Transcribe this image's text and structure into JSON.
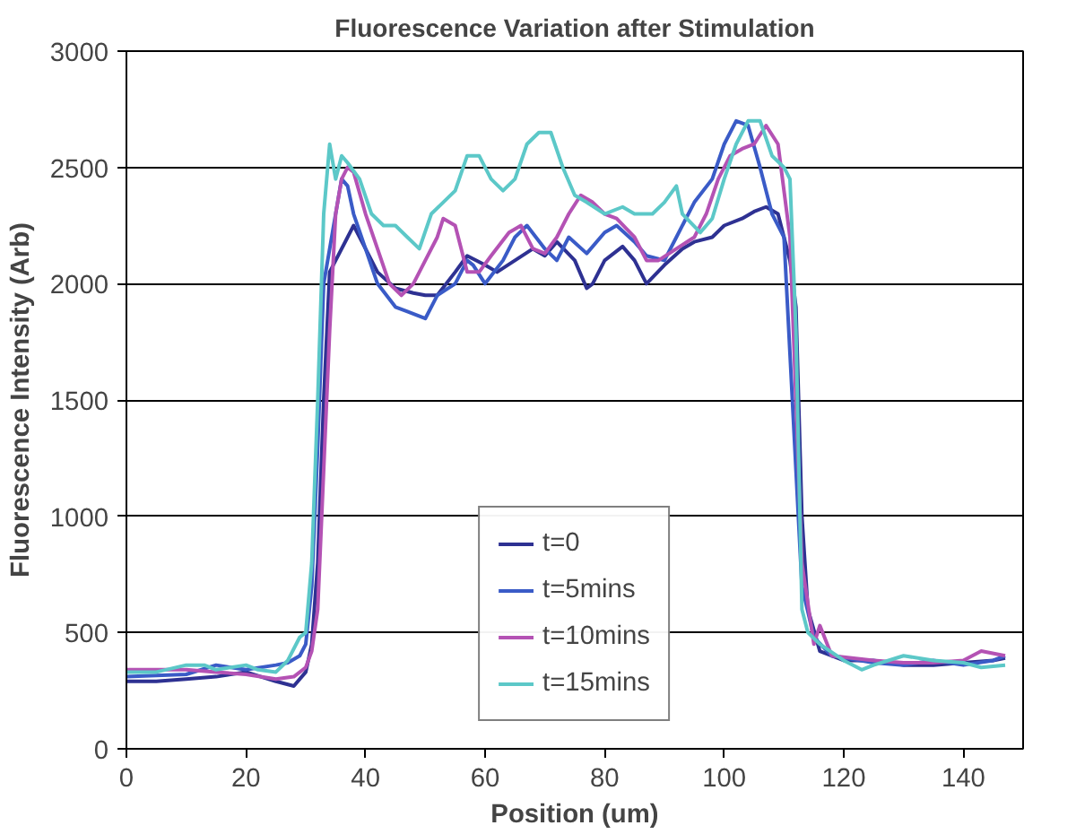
{
  "chart_data": {
    "type": "line",
    "title": "Fluorescence Variation after Stimulation",
    "xlabel": "Position (um)",
    "ylabel": "Fluorescence Intensity (Arb)",
    "xlim": [
      0,
      150
    ],
    "xticks": [
      0,
      20,
      40,
      60,
      80,
      100,
      120,
      140
    ],
    "ylim": [
      0,
      3000
    ],
    "yticks": [
      0,
      500,
      1000,
      1500,
      2000,
      2500,
      3000
    ],
    "grid": "y",
    "legend": "bottom",
    "marker": "none",
    "line_style": "solid",
    "series": [
      {
        "name": "t=0",
        "color": "#2e3192",
        "x": [
          0,
          5,
          10,
          15,
          20,
          25,
          28,
          30,
          31,
          32,
          33,
          34,
          35,
          37,
          38,
          40,
          42,
          45,
          48,
          50,
          52,
          55,
          57,
          60,
          62,
          65,
          68,
          70,
          72,
          75,
          77,
          78,
          80,
          83,
          85,
          87,
          90,
          93,
          95,
          98,
          100,
          103,
          105,
          107,
          109,
          111,
          112,
          113,
          114,
          116,
          120,
          125,
          130,
          135,
          140,
          145,
          147
        ],
        "values": [
          290,
          290,
          300,
          310,
          330,
          290,
          270,
          330,
          450,
          800,
          1500,
          2050,
          2100,
          2200,
          2250,
          2150,
          2050,
          1980,
          1960,
          1950,
          1950,
          2050,
          2120,
          2080,
          2050,
          2100,
          2150,
          2120,
          2180,
          2100,
          1980,
          2000,
          2100,
          2160,
          2100,
          2000,
          2080,
          2150,
          2180,
          2200,
          2250,
          2280,
          2310,
          2330,
          2300,
          2100,
          1900,
          1000,
          600,
          420,
          380,
          380,
          360,
          360,
          370,
          380,
          390
        ]
      },
      {
        "name": "t=5mins",
        "color": "#3a5bc7",
        "x": [
          0,
          10,
          15,
          20,
          25,
          27,
          29,
          30,
          31,
          32,
          33,
          35,
          36,
          37,
          38,
          40,
          42,
          45,
          47,
          50,
          52,
          55,
          57,
          58,
          60,
          63,
          65,
          67,
          70,
          72,
          74,
          77,
          80,
          82,
          85,
          87,
          90,
          92,
          95,
          98,
          100,
          102,
          104,
          106,
          108,
          110,
          111,
          112,
          113,
          115,
          118,
          125,
          130,
          135,
          140,
          145,
          147
        ],
        "values": [
          310,
          320,
          360,
          340,
          360,
          370,
          400,
          450,
          700,
          1300,
          2000,
          2300,
          2450,
          2420,
          2300,
          2150,
          2000,
          1900,
          1880,
          1850,
          1950,
          2000,
          2100,
          2080,
          2000,
          2100,
          2200,
          2250,
          2150,
          2100,
          2200,
          2130,
          2220,
          2250,
          2180,
          2120,
          2100,
          2200,
          2350,
          2450,
          2600,
          2700,
          2680,
          2500,
          2300,
          2200,
          1700,
          1200,
          700,
          480,
          400,
          370,
          360,
          380,
          360,
          380,
          400
        ]
      },
      {
        "name": "t=10mins",
        "color": "#b452b4",
        "x": [
          0,
          10,
          15,
          20,
          25,
          28,
          30,
          31,
          32,
          33,
          34,
          35,
          36,
          37,
          38,
          40,
          42,
          44,
          46,
          48,
          50,
          52,
          53,
          55,
          57,
          59,
          61,
          64,
          66,
          68,
          70,
          72,
          74,
          76,
          78,
          80,
          82,
          85,
          87,
          89,
          92,
          95,
          97,
          99,
          101,
          103,
          105,
          107,
          109,
          111,
          112,
          113,
          115,
          116,
          118,
          125,
          130,
          135,
          140,
          143,
          147
        ],
        "values": [
          340,
          340,
          330,
          320,
          300,
          310,
          350,
          420,
          600,
          1200,
          1800,
          2300,
          2450,
          2500,
          2480,
          2300,
          2150,
          2000,
          1950,
          2000,
          2100,
          2200,
          2280,
          2250,
          2050,
          2050,
          2120,
          2220,
          2250,
          2150,
          2130,
          2200,
          2300,
          2380,
          2350,
          2300,
          2280,
          2200,
          2100,
          2100,
          2150,
          2200,
          2300,
          2450,
          2550,
          2580,
          2600,
          2680,
          2600,
          2200,
          1500,
          800,
          450,
          530,
          400,
          380,
          370,
          370,
          380,
          420,
          400
        ]
      },
      {
        "name": "t=15mins",
        "color": "#5cc8c8",
        "x": [
          0,
          5,
          10,
          13,
          15,
          20,
          22,
          25,
          27,
          29,
          30,
          31,
          32,
          33,
          34,
          35,
          36,
          37,
          39,
          41,
          43,
          45,
          47,
          49,
          51,
          53,
          55,
          57,
          59,
          61,
          63,
          65,
          67,
          69,
          71,
          73,
          75,
          77,
          80,
          83,
          85,
          88,
          90,
          92,
          93,
          96,
          98,
          100,
          102,
          104,
          106,
          108,
          110,
          111,
          112,
          113,
          114,
          116,
          120,
          123,
          125,
          130,
          135,
          140,
          143,
          147
        ],
        "values": [
          330,
          330,
          360,
          360,
          340,
          360,
          340,
          330,
          380,
          480,
          500,
          800,
          1500,
          2300,
          2600,
          2450,
          2550,
          2520,
          2450,
          2300,
          2250,
          2250,
          2200,
          2150,
          2300,
          2350,
          2400,
          2550,
          2550,
          2450,
          2400,
          2450,
          2600,
          2650,
          2650,
          2500,
          2380,
          2350,
          2300,
          2330,
          2300,
          2300,
          2350,
          2420,
          2300,
          2220,
          2280,
          2450,
          2600,
          2700,
          2700,
          2550,
          2500,
          2450,
          1800,
          600,
          500,
          450,
          380,
          340,
          360,
          400,
          380,
          370,
          350,
          360
        ]
      }
    ]
  }
}
